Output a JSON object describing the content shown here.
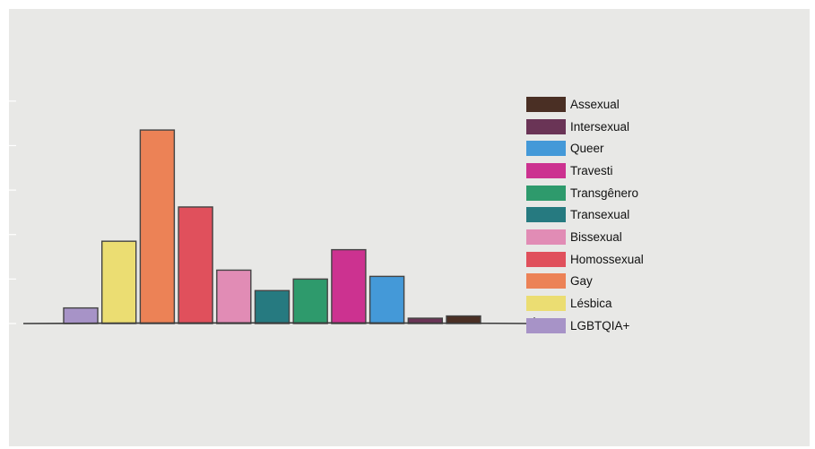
{
  "chart_data": {
    "type": "bar",
    "title": "",
    "xlabel": "",
    "ylabel": "",
    "ylim": [
      0,
      5.5
    ],
    "grid": false,
    "legend_position": "right",
    "categories": [
      "LGBTQIA+",
      "Lésbica",
      "Gay",
      "Homossexual",
      "Bissexual",
      "Transexual",
      "Transgênero",
      "Travesti",
      "Queer",
      "Intersexual",
      "Assexual"
    ],
    "values": [
      0.35,
      1.85,
      4.35,
      2.62,
      1.2,
      0.74,
      1.0,
      1.66,
      1.06,
      0.12,
      0.17
    ],
    "colors": [
      "#a793c7",
      "#ebdd72",
      "#ec8256",
      "#e0505c",
      "#e18cb5",
      "#267a80",
      "#2e9a6c",
      "#cc3290",
      "#4499d8",
      "#6a3456",
      "#4a2f24"
    ],
    "legend_order": [
      "Assexual",
      "Intersexual",
      "Queer",
      "Travesti",
      "Transgênero",
      "Transexual",
      "Bissexual",
      "Homossexual",
      "Gay",
      "Lésbica",
      "LGBTQIA+"
    ]
  },
  "style": {
    "background": "#e8e8e6",
    "axis_color": "#3a3a3a",
    "tick_color": "#ffffff",
    "bar_outline": "#444444"
  }
}
